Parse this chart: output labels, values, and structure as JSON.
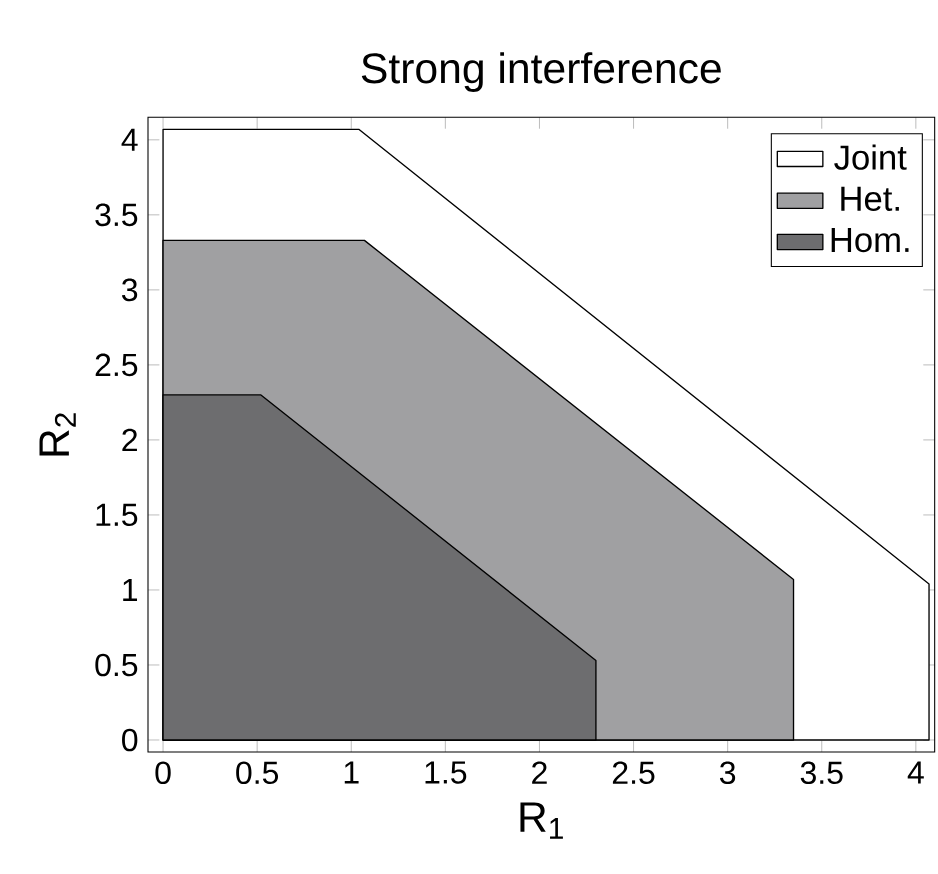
{
  "chart_data": {
    "type": "area",
    "title": "Strong interference",
    "xlabel": "R$_{1}$",
    "ylabel": "R$_{2}$",
    "series": [
      {
        "name": "Joint",
        "color": "#ffffff",
        "x": [
          0,
          0,
          1.04,
          4.07,
          4.07
        ],
        "values": [
          0,
          4.07,
          4.07,
          1.04,
          0
        ]
      },
      {
        "name": "Het.",
        "color": "#a0a0a2",
        "x": [
          0,
          0,
          1.07,
          3.35,
          3.35
        ],
        "values": [
          0,
          3.33,
          3.33,
          1.07,
          0
        ]
      },
      {
        "name": "Hom.",
        "color": "#6d6d6f",
        "x": [
          0,
          0,
          0.52,
          2.3,
          2.3
        ],
        "values": [
          0,
          2.3,
          2.3,
          0.53,
          0
        ]
      }
    ],
    "xlim": [
      -0.08,
      4.1
    ],
    "ylim": [
      -0.08,
      4.15
    ],
    "xticks": [
      0,
      0.5,
      1,
      1.5,
      2,
      2.5,
      3,
      3.5,
      4
    ],
    "yticks": [
      0,
      0.5,
      1,
      1.5,
      2,
      2.5,
      3,
      3.5,
      4
    ],
    "grid": false,
    "legend": "top right"
  }
}
